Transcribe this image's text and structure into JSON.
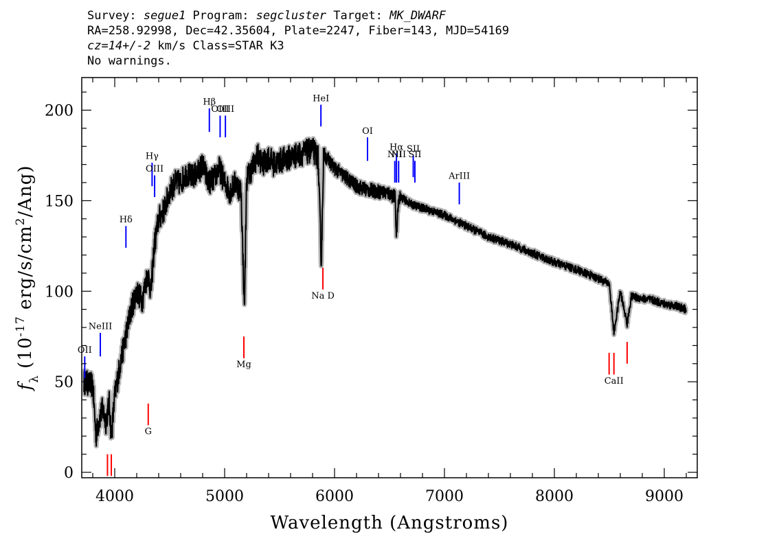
{
  "header": {
    "line1": {
      "survey_label": "Survey: ",
      "survey": "segue1",
      "program_label": " Program: ",
      "program": "segcluster",
      "target_label": " Target: ",
      "target": "MK_DWARF"
    },
    "line2": "RA=258.92998, Dec=42.35604, Plate=2247, Fiber=143, MJD=54169",
    "line3": {
      "cz": "cz=14+/-2",
      "rest": " km/s Class=STAR K3"
    },
    "line4": "No warnings."
  },
  "chart_data": {
    "type": "line",
    "xlabel": "Wavelength (Angstroms)",
    "ylabel": "f_λ (10^-17 erg/s/cm^2/Ang)",
    "xlim": [
      3700,
      9300
    ],
    "ylim": [
      -3,
      218
    ],
    "xticks": [
      4000,
      5000,
      6000,
      7000,
      8000,
      9000
    ],
    "yticks": [
      0,
      50,
      100,
      150,
      200
    ],
    "x_minor_step": 200,
    "y_minor_step": 10,
    "colors": {
      "spectrum": "#000000",
      "error_band": "#b4b4b4",
      "emission": "#0000ff",
      "absorption": "#ff0000"
    },
    "series": [
      {
        "role": "spectrum",
        "x": [
          3720,
          3800,
          3830,
          3860,
          3890,
          3920,
          3950,
          3970,
          4000,
          4050,
          4100,
          4150,
          4200,
          4250,
          4300,
          4330,
          4360,
          4400,
          4450,
          4500,
          4550,
          4600,
          4650,
          4700,
          4750,
          4800,
          4850,
          4900,
          4950,
          5000,
          5050,
          5100,
          5150,
          5180,
          5200,
          5250,
          5300,
          5350,
          5400,
          5450,
          5500,
          5600,
          5700,
          5800,
          5850,
          5880,
          5900,
          5950,
          6000,
          6100,
          6200,
          6300,
          6400,
          6500,
          6550,
          6563,
          6580,
          6600,
          6700,
          6800,
          7000,
          7200,
          7400,
          7600,
          7800,
          8000,
          8200,
          8400,
          8500,
          8542,
          8600,
          8662,
          8700,
          8800,
          8900,
          9000,
          9100,
          9200
        ],
        "values": [
          50,
          48,
          20,
          30,
          35,
          28,
          38,
          20,
          42,
          60,
          75,
          90,
          100,
          95,
          110,
          100,
          125,
          140,
          145,
          155,
          160,
          160,
          165,
          163,
          165,
          170,
          160,
          162,
          168,
          160,
          155,
          160,
          155,
          90,
          162,
          168,
          175,
          170,
          174,
          170,
          172,
          174,
          176,
          178,
          174,
          115,
          176,
          172,
          168,
          163,
          158,
          156,
          155,
          154,
          152,
          130,
          150,
          152,
          148,
          146,
          142,
          136,
          130,
          126,
          121,
          116,
          112,
          107,
          104,
          77,
          100,
          82,
          97,
          96,
          95,
          93,
          92,
          90
        ]
      }
    ],
    "emission_lines": [
      {
        "name": "OII",
        "x": 3727,
        "y_line": [
          52,
          64
        ],
        "label_y": 66
      },
      {
        "name": "NeIII",
        "x": 3869,
        "y_line": [
          64,
          77
        ],
        "label_y": 79
      },
      {
        "name": "Hδ",
        "x": 4102,
        "y_line": [
          124,
          136
        ],
        "label_y": 138
      },
      {
        "name": "Hγ",
        "x": 4340,
        "y_line": [
          158,
          171
        ],
        "label_y": 173
      },
      {
        "name": "OIII",
        "x": 4363,
        "y_line": [
          152,
          164
        ],
        "label_y": 166
      },
      {
        "name": "Hβ",
        "x": 4861,
        "y_line": [
          188,
          201
        ],
        "label_y": 203
      },
      {
        "name": "OIII",
        "x": 4959,
        "y_line": [
          185,
          197
        ],
        "label_y": 199
      },
      {
        "name": "OIII",
        "x": 5007,
        "y_line": [
          185,
          197
        ],
        "label_y": 199
      },
      {
        "name": "HeI",
        "x": 5876,
        "y_line": [
          191,
          203
        ],
        "label_y": 205
      },
      {
        "name": "OI",
        "x": 6300,
        "y_line": [
          172,
          185
        ],
        "label_y": 187
      },
      {
        "name": "NII",
        "x": 6548,
        "y_line": [
          160,
          172
        ],
        "label_y": 174
      },
      {
        "name": "Hα",
        "x": 6563,
        "y_line": [
          160,
          176
        ],
        "label_y": 178
      },
      {
        "name": "NII",
        "x": 6583,
        "y_line": [
          160,
          172
        ],
        "label_y": 174
      },
      {
        "name": "SII",
        "x": 6716,
        "y_line": [
          163,
          175
        ],
        "label_y": 177
      },
      {
        "name": "SII",
        "x": 6731,
        "y_line": [
          160,
          172
        ],
        "label_y": 174
      },
      {
        "name": "ArIII",
        "x": 7135,
        "y_line": [
          148,
          160
        ],
        "label_y": 162
      }
    ],
    "absorption_lines": [
      {
        "name": "",
        "x": 3934,
        "y_line": [
          -2,
          10
        ]
      },
      {
        "name": "",
        "x": 3969,
        "y_line": [
          -2,
          10
        ]
      },
      {
        "name": "G",
        "x": 4305,
        "y_line": [
          26,
          38
        ],
        "label_y": 21
      },
      {
        "name": "Mg",
        "x": 5175,
        "y_line": [
          63,
          75
        ],
        "label_y": 58
      },
      {
        "name": "Na D",
        "x": 5894,
        "y_line": [
          101,
          113
        ],
        "label_y": 96
      },
      {
        "name": "CaII",
        "x": 8498,
        "y_line": [
          54,
          66
        ]
      },
      {
        "name": "CaII",
        "x": 8542,
        "y_line": [
          54,
          66
        ],
        "label_y": 49
      },
      {
        "name": "",
        "x": 8662,
        "y_line": [
          60,
          72
        ]
      }
    ]
  }
}
